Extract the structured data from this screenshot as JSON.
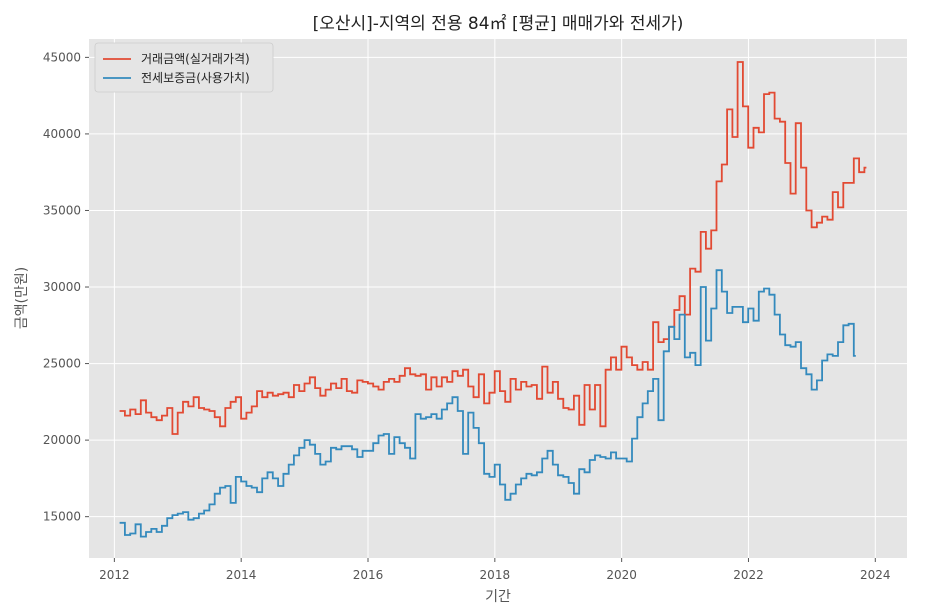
{
  "chart_data": {
    "type": "line",
    "step": true,
    "title": "[오산시]-지역의 전용 84㎡ [평균] 매매가와 전세가)",
    "xlabel": "기간",
    "ylabel": "금액(만원)",
    "xlim": [
      2011.6,
      2024.5
    ],
    "ylim": [
      12300,
      46200
    ],
    "xticks": [
      2012,
      2014,
      2016,
      2018,
      2020,
      2022,
      2024
    ],
    "yticks": [
      15000,
      20000,
      25000,
      30000,
      35000,
      40000,
      45000
    ],
    "grid": true,
    "legend_position": "top-left",
    "colors": {
      "background": "#e5e5e5",
      "grid": "#ffffff"
    },
    "series": [
      {
        "name": "거래금액(실거래가격)",
        "color": "#e24a33",
        "x_start": 2012.083,
        "x_step": 0.0833,
        "values": [
          21900,
          21600,
          22000,
          21700,
          22600,
          21800,
          21500,
          21300,
          21600,
          22100,
          20400,
          21800,
          22500,
          22200,
          22800,
          22100,
          22000,
          21900,
          21500,
          20900,
          22100,
          22500,
          22800,
          21400,
          21800,
          22200,
          23200,
          22800,
          23100,
          22900,
          23000,
          23100,
          22800,
          23600,
          23200,
          23700,
          24100,
          23400,
          22900,
          23300,
          23700,
          23400,
          24000,
          23200,
          23100,
          23900,
          23800,
          23700,
          23500,
          23300,
          23800,
          24000,
          23800,
          24200,
          24700,
          24300,
          24200,
          24300,
          23300,
          24100,
          23500,
          24100,
          23800,
          24500,
          24200,
          24600,
          23500,
          22800,
          24300,
          22400,
          23100,
          24500,
          23200,
          22500,
          24000,
          23300,
          23800,
          23500,
          23600,
          22700,
          24800,
          23100,
          23800,
          22700,
          22100,
          22000,
          22900,
          21000,
          23600,
          22000,
          23600,
          20900,
          24600,
          25400,
          24600,
          26100,
          25400,
          24900,
          24600,
          25100,
          24600,
          27700,
          26400,
          26600,
          27400,
          28500,
          29400,
          28200,
          31200,
          31000,
          33600,
          32500,
          33700,
          36900,
          38000,
          41600,
          39800,
          44700,
          41800,
          39100,
          40400,
          40100,
          42600,
          42700,
          41000,
          40800,
          38100,
          36100,
          40700,
          37800,
          35000,
          33900,
          34200,
          34600,
          34400,
          36200,
          35200,
          36800,
          36800,
          38400,
          37500,
          37800
        ]
      },
      {
        "name": "전세보증금(사용가치)",
        "color": "#348abd",
        "x_start": 2012.083,
        "x_step": 0.0833,
        "values": [
          14600,
          13800,
          13900,
          14500,
          13700,
          14000,
          14200,
          14000,
          14400,
          14900,
          15100,
          15200,
          15300,
          14800,
          14900,
          15200,
          15400,
          15800,
          16500,
          16900,
          17000,
          15900,
          17600,
          17300,
          17000,
          16900,
          16600,
          17500,
          17900,
          17500,
          17000,
          17800,
          18400,
          19000,
          19500,
          20000,
          19700,
          19100,
          18400,
          18600,
          19500,
          19400,
          19600,
          19600,
          19400,
          18900,
          19300,
          19300,
          19800,
          20300,
          20400,
          19100,
          20200,
          19800,
          19500,
          18800,
          21700,
          21400,
          21500,
          21700,
          21400,
          22000,
          22400,
          22800,
          21900,
          19100,
          21800,
          20800,
          19800,
          17800,
          17600,
          18400,
          17100,
          16100,
          16500,
          17100,
          17500,
          17800,
          17700,
          17900,
          18800,
          19300,
          18400,
          17700,
          17600,
          17200,
          16500,
          18100,
          17900,
          18700,
          19000,
          18900,
          18800,
          19200,
          18800,
          18800,
          18600,
          20100,
          21500,
          22400,
          23200,
          24000,
          21300,
          25800,
          27400,
          26600,
          28200,
          25400,
          25700,
          24900,
          30000,
          26500,
          28600,
          31100,
          29700,
          28300,
          28700,
          28700,
          27700,
          28600,
          27800,
          29700,
          29900,
          29500,
          28200,
          26900,
          26200,
          26100,
          26400,
          24700,
          24300,
          23300,
          23900,
          25200,
          25600,
          25500,
          26400,
          27500,
          27600,
          25500
        ]
      }
    ]
  }
}
